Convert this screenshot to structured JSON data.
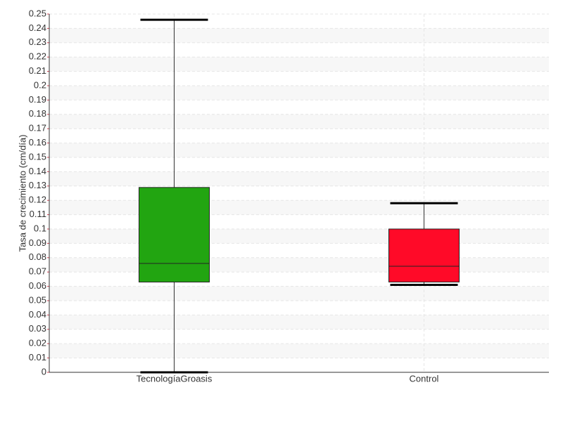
{
  "chart_data": {
    "type": "box",
    "y_label": "Tasa de crecimiento (cm/día)",
    "categories": [
      "TecnologíaGroasis",
      "Control"
    ],
    "boxes": [
      {
        "min": 0,
        "q1": 0.063,
        "median": 0.076,
        "q3": 0.129,
        "max": 0.246,
        "color": "#22a511"
      },
      {
        "min": 0.061,
        "q1": 0.063,
        "median": 0.074,
        "q3": 0.1,
        "max": 0.118,
        "color": "#ff0a28"
      }
    ],
    "ylim": [
      0,
      0.25
    ],
    "yticks": [
      0,
      0.01,
      0.02,
      0.03,
      0.04,
      0.05,
      0.06,
      0.07,
      0.08,
      0.09,
      0.1,
      0.11,
      0.12,
      0.13,
      0.14,
      0.15,
      0.16,
      0.17,
      0.18,
      0.19,
      0.2,
      0.21,
      0.22,
      0.23,
      0.24,
      0.25
    ],
    "grid": true
  }
}
